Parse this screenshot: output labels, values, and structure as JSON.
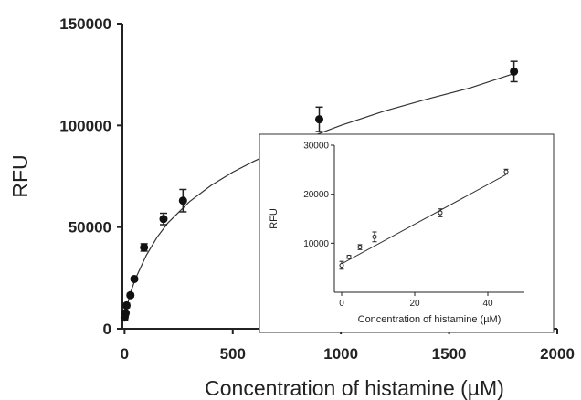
{
  "chart_data": [
    {
      "type": "scatter",
      "xlabel": "Concentration of histamine (µM)",
      "ylabel": "RFU",
      "xlim": [
        -10,
        2000
      ],
      "ylim": [
        0,
        150000
      ],
      "x_ticks": [
        "0",
        "500",
        "1000",
        "1500",
        "2000"
      ],
      "y_ticks": [
        "0",
        "50000",
        "100000",
        "150000"
      ],
      "x_tick_values": [
        0,
        500,
        1000,
        1500,
        2000
      ],
      "y_tick_values": [
        0,
        50000,
        100000,
        150000
      ],
      "series": [
        {
          "marker": "filled-circle",
          "x": [
            0,
            2,
            5,
            9,
            27,
            45,
            90,
            180,
            270,
            900,
            1800
          ],
          "y": [
            5500,
            6800,
            7800,
            11500,
            16500,
            24500,
            40000,
            54000,
            63000,
            103000,
            126500
          ],
          "error": [
            1200,
            800,
            800,
            1000,
            800,
            800,
            1800,
            2800,
            5500,
            6000,
            5000
          ]
        }
      ],
      "fit_curve": {
        "x": [
          0,
          25,
          50,
          100,
          150,
          200,
          300,
          400,
          500,
          600,
          800,
          1000,
          1200,
          1400,
          1600,
          1800
        ],
        "y": [
          6000,
          17000,
          24500,
          36000,
          45000,
          52000,
          62500,
          70500,
          77000,
          82500,
          92000,
          100000,
          107000,
          113000,
          118500,
          125500
        ]
      }
    },
    {
      "type": "scatter",
      "xlabel": "Concentration of histamine (µM)",
      "ylabel": "RFU",
      "xlim": [
        -2,
        50
      ],
      "ylim": [
        0,
        30000
      ],
      "x_ticks": [
        "0",
        "20",
        "40"
      ],
      "y_ticks": [
        "10000",
        "20000",
        "30000"
      ],
      "x_tick_values": [
        0,
        20,
        40
      ],
      "y_tick_values": [
        10000,
        20000,
        30000
      ],
      "series": [
        {
          "marker": "open-circle",
          "x": [
            0,
            2,
            5,
            9,
            27,
            45
          ],
          "y": [
            5500,
            7200,
            9200,
            11300,
            16200,
            24600
          ],
          "error": [
            800,
            300,
            500,
            1000,
            800,
            500
          ]
        }
      ],
      "fit_line": {
        "x": [
          0,
          45
        ],
        "y": [
          5800,
          24000
        ]
      }
    }
  ]
}
